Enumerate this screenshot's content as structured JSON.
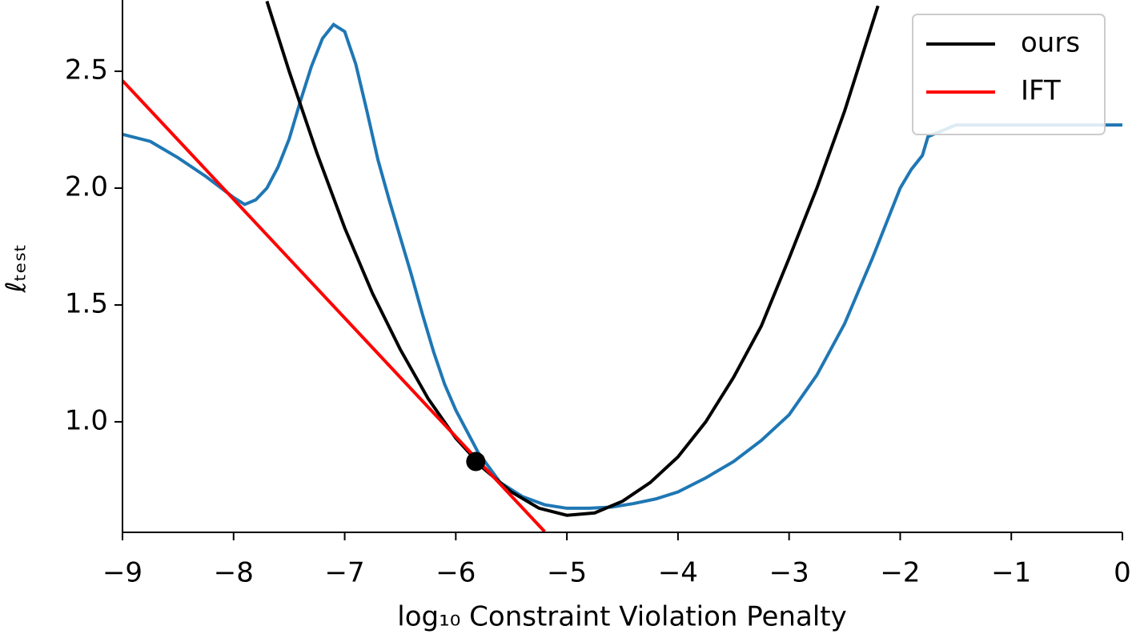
{
  "chart_data": {
    "type": "line",
    "xlabel": "log₁₀ Constraint Violation Penalty",
    "ylabel": "ℓₜₑₛₜ",
    "xlim": [
      -9,
      0
    ],
    "ylim": [
      0.527,
      2.805
    ],
    "xticks": [
      {
        "value": -9,
        "label": "−9"
      },
      {
        "value": -8,
        "label": "−8"
      },
      {
        "value": -7,
        "label": "−7"
      },
      {
        "value": -6,
        "label": "−6"
      },
      {
        "value": -5,
        "label": "−5"
      },
      {
        "value": -4,
        "label": "−4"
      },
      {
        "value": -3,
        "label": "−3"
      },
      {
        "value": -2,
        "label": "−2"
      },
      {
        "value": -1,
        "label": "−1"
      },
      0
    ],
    "yticks": [
      {
        "value": 1,
        "label": "1.0"
      },
      {
        "value": 1.5,
        "label": "1.5"
      },
      {
        "value": 2,
        "label": "2.0"
      },
      {
        "value": 2.5,
        "label": "2.5"
      }
    ],
    "legend": "upper right",
    "series": [
      {
        "color": "#1f77b4",
        "x": [
          -9,
          -8.75,
          -8.5,
          -8.25,
          -8,
          -7.9,
          -7.8,
          -7.7,
          -7.6,
          -7.5,
          -7.4,
          -7.3,
          -7.2,
          -7.1,
          -7,
          -6.9,
          -6.8,
          -6.7,
          -6.6,
          -6.5,
          -6.4,
          -6.3,
          -6.2,
          -6.1,
          -6,
          -5.8,
          -5.6,
          -5.4,
          -5.2,
          -5,
          -4.8,
          -4.6,
          -4.4,
          -4.2,
          -4,
          -3.75,
          -3.5,
          -3.25,
          -3,
          -2.75,
          -2.5,
          -2.25,
          -2.1,
          -2,
          -1.9,
          -1.8,
          -1.75,
          -1.65,
          -1.5,
          0
        ],
        "values": [
          2.23,
          2.2,
          2.13,
          2.05,
          1.96,
          1.93,
          1.95,
          2.0,
          2.09,
          2.21,
          2.37,
          2.52,
          2.64,
          2.7,
          2.67,
          2.53,
          2.33,
          2.12,
          1.95,
          1.79,
          1.63,
          1.46,
          1.3,
          1.16,
          1.05,
          0.87,
          0.74,
          0.68,
          0.645,
          0.63,
          0.63,
          0.635,
          0.65,
          0.67,
          0.7,
          0.76,
          0.83,
          0.92,
          1.03,
          1.2,
          1.42,
          1.7,
          1.88,
          2.0,
          2.08,
          2.14,
          2.22,
          2.24,
          2.27,
          2.27
        ]
      },
      {
        "name": "ours",
        "color": "#000000",
        "x": [
          -7.7,
          -7.5,
          -7.25,
          -7,
          -6.75,
          -6.5,
          -6.25,
          -6,
          -5.75,
          -5.5,
          -5.25,
          -5,
          -4.75,
          -4.5,
          -4.25,
          -4,
          -3.75,
          -3.5,
          -3.25,
          -3,
          -2.75,
          -2.5,
          -2.2
        ],
        "values": [
          2.8,
          2.5,
          2.15,
          1.83,
          1.55,
          1.31,
          1.1,
          0.93,
          0.8,
          0.7,
          0.63,
          0.6,
          0.61,
          0.66,
          0.74,
          0.85,
          1.0,
          1.19,
          1.41,
          1.7,
          2.0,
          2.33,
          2.78
        ]
      },
      {
        "name": "IFT",
        "color": "#ff0000",
        "x": [
          -9,
          -5.2
        ],
        "values": [
          2.46,
          0.53
        ]
      }
    ],
    "point": {
      "x": -5.82,
      "y": 0.83,
      "color": "#000000"
    }
  }
}
